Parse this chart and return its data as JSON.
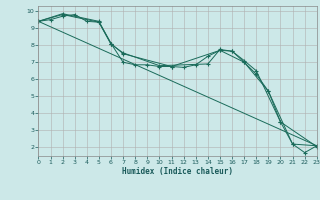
{
  "xlabel": "Humidex (Indice chaleur)",
  "bg_color": "#cce8e8",
  "grid_color": "#b0b0b0",
  "line_color": "#1a6b5a",
  "xlim": [
    0,
    23
  ],
  "ylim": [
    1.5,
    10.3
  ],
  "xticks": [
    0,
    1,
    2,
    3,
    4,
    5,
    6,
    7,
    8,
    9,
    10,
    11,
    12,
    13,
    14,
    15,
    16,
    17,
    18,
    19,
    20,
    21,
    22,
    23
  ],
  "yticks": [
    2,
    3,
    4,
    5,
    6,
    7,
    8,
    9,
    10
  ],
  "series1": [
    [
      0,
      9.4
    ],
    [
      1,
      9.5
    ],
    [
      2,
      9.7
    ],
    [
      3,
      9.8
    ],
    [
      4,
      9.4
    ],
    [
      5,
      9.35
    ],
    [
      6,
      8.1
    ],
    [
      7,
      7.0
    ],
    [
      8,
      6.85
    ],
    [
      9,
      6.85
    ],
    [
      10,
      6.75
    ],
    [
      11,
      6.75
    ],
    [
      12,
      6.7
    ],
    [
      13,
      6.85
    ],
    [
      14,
      7.35
    ],
    [
      15,
      7.7
    ],
    [
      16,
      7.65
    ],
    [
      17,
      7.0
    ],
    [
      18,
      6.3
    ],
    [
      19,
      5.3
    ],
    [
      20,
      3.5
    ],
    [
      21,
      2.2
    ],
    [
      22,
      1.7
    ],
    [
      23,
      2.1
    ]
  ],
  "series2": [
    [
      0,
      9.4
    ],
    [
      2,
      9.8
    ],
    [
      5,
      9.35
    ],
    [
      6,
      8.05
    ],
    [
      7,
      7.55
    ],
    [
      10,
      6.8
    ],
    [
      14,
      6.9
    ],
    [
      15,
      7.75
    ],
    [
      16,
      7.65
    ],
    [
      17,
      7.1
    ],
    [
      18,
      6.5
    ],
    [
      20,
      3.5
    ],
    [
      23,
      2.05
    ]
  ],
  "series3": [
    [
      0,
      9.4
    ],
    [
      2,
      9.85
    ],
    [
      5,
      9.4
    ],
    [
      6,
      8.1
    ],
    [
      7,
      7.5
    ],
    [
      11,
      6.75
    ],
    [
      15,
      7.7
    ],
    [
      17,
      7.0
    ],
    [
      19,
      5.3
    ],
    [
      21,
      2.2
    ],
    [
      23,
      2.1
    ]
  ],
  "linear_series": [
    [
      0,
      9.4
    ],
    [
      23,
      2.1
    ]
  ]
}
